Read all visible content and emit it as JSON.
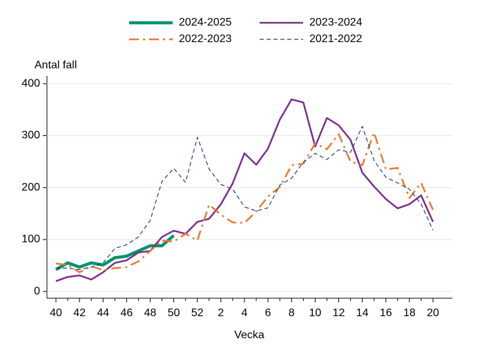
{
  "chart_data": {
    "type": "line",
    "y_label": "Antal fall",
    "x_label": "Vecka",
    "categories": [
      40,
      null,
      42,
      null,
      44,
      null,
      46,
      null,
      48,
      null,
      50,
      null,
      52,
      null,
      2,
      null,
      4,
      null,
      6,
      null,
      8,
      null,
      10,
      null,
      12,
      null,
      14,
      null,
      16,
      null,
      18,
      null,
      20
    ],
    "series": [
      {
        "name": "2024-2025",
        "color": "#00936b",
        "line_style": "solid",
        "values": [
          42,
          55,
          47,
          55,
          51,
          65,
          68,
          78,
          88,
          88,
          108,
          null,
          null,
          null,
          null,
          null,
          null,
          null,
          null,
          null,
          null,
          null,
          null,
          null,
          null,
          null,
          null,
          null,
          null,
          null,
          null,
          null,
          null
        ]
      },
      {
        "name": "2023-2024",
        "color": "#7b2e8c",
        "line_style": "solid",
        "values": [
          20,
          28,
          31,
          23,
          37,
          55,
          60,
          75,
          78,
          105,
          117,
          111,
          134,
          140,
          168,
          208,
          266,
          244,
          275,
          331,
          370,
          364,
          279,
          334,
          320,
          292,
          229,
          202,
          178,
          160,
          168,
          185,
          134
        ]
      },
      {
        "name": "2022-2023",
        "color": "#e97a2f",
        "line_style": "dash-dot",
        "values": [
          54,
          51,
          37,
          49,
          41,
          45,
          47,
          58,
          78,
          98,
          96,
          111,
          98,
          167,
          148,
          133,
          132,
          154,
          183,
          201,
          243,
          246,
          285,
          274,
          303,
          250,
          243,
          306,
          235,
          238,
          180,
          209,
          157
        ]
      },
      {
        "name": "2021-2022",
        "color": "#1f3a7d",
        "line_style": "dashed",
        "values": [
          45,
          45,
          42,
          47,
          55,
          83,
          90,
          105,
          137,
          212,
          237,
          210,
          297,
          236,
          206,
          197,
          163,
          155,
          161,
          205,
          218,
          249,
          266,
          254,
          273,
          268,
          318,
          252,
          220,
          209,
          197,
          168,
          118
        ]
      }
    ],
    "ylim": [
      -13,
      415
    ],
    "yticks": [
      0,
      100,
      200,
      300,
      400
    ],
    "grid": true
  }
}
